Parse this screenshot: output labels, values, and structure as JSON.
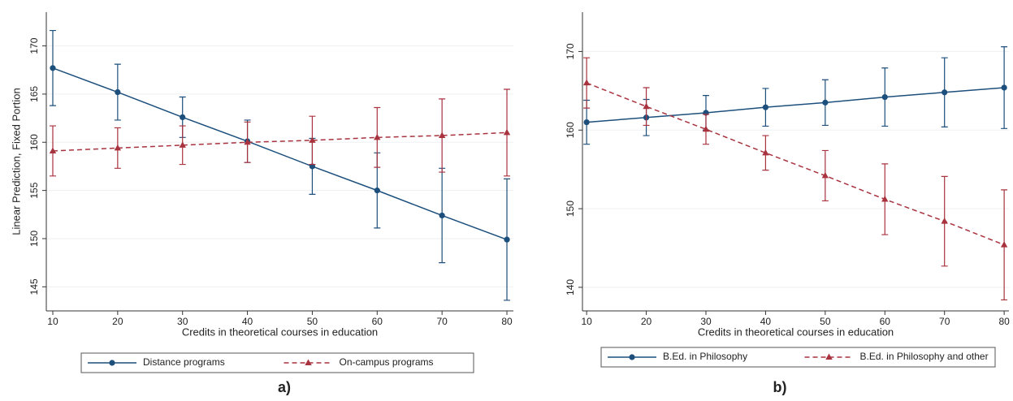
{
  "chart_data": [
    {
      "type": "line",
      "label": "a)",
      "y_title": "Linear Prediction, Fixed Portion",
      "x_title": "Credits in theoretical courses in education",
      "x": [
        10,
        20,
        30,
        40,
        50,
        60,
        70,
        80
      ],
      "xlim": [
        9,
        81
      ],
      "xticks": [
        10,
        20,
        30,
        40,
        50,
        60,
        70,
        80
      ],
      "ylim": [
        142.5,
        173.5
      ],
      "yticks": [
        145,
        150,
        155,
        160,
        165,
        170
      ],
      "grid": true,
      "legend": "bottom",
      "series": [
        {
          "name": "Distance programs",
          "color": "#1c4f7c",
          "dash": false,
          "marker": "circle",
          "values": [
            167.7,
            165.2,
            162.6,
            160.1,
            157.5,
            155.0,
            152.4,
            149.9
          ],
          "errors": [
            3.9,
            2.9,
            2.1,
            2.2,
            2.9,
            3.9,
            4.9,
            6.3
          ]
        },
        {
          "name": "On-campus programs",
          "color": "#a8323e",
          "dash": true,
          "marker": "triangle",
          "values": [
            159.1,
            159.4,
            159.7,
            160.0,
            160.2,
            160.5,
            160.7,
            161.0
          ],
          "errors": [
            2.6,
            2.1,
            2.0,
            2.1,
            2.5,
            3.1,
            3.8,
            4.5
          ]
        }
      ]
    },
    {
      "type": "line",
      "label": "b)",
      "x_title": "Credits in theoretical courses in education",
      "x": [
        10,
        20,
        30,
        40,
        50,
        60,
        70,
        80
      ],
      "xlim": [
        9.3,
        80.8
      ],
      "xticks": [
        10,
        20,
        30,
        40,
        50,
        60,
        70,
        80
      ],
      "ylim": [
        137,
        175
      ],
      "yticks": [
        140,
        150,
        160,
        170
      ],
      "grid": true,
      "legend": "bottom",
      "series": [
        {
          "name": "B.Ed. in Philosophy",
          "color": "#1c4f7c",
          "dash": false,
          "marker": "circle",
          "values": [
            161.0,
            161.6,
            162.2,
            162.9,
            163.5,
            164.2,
            164.8,
            165.4
          ],
          "errors": [
            2.8,
            2.3,
            2.2,
            2.4,
            2.9,
            3.7,
            4.4,
            5.2
          ]
        },
        {
          "name": "B.Ed. in Philosophy and other",
          "color": "#a8323e",
          "dash": true,
          "marker": "triangle",
          "values": [
            166.0,
            163.0,
            160.1,
            157.1,
            154.2,
            151.2,
            148.4,
            145.4
          ],
          "errors": [
            3.2,
            2.4,
            1.9,
            2.2,
            3.2,
            4.5,
            5.7,
            7.0
          ]
        }
      ]
    }
  ]
}
